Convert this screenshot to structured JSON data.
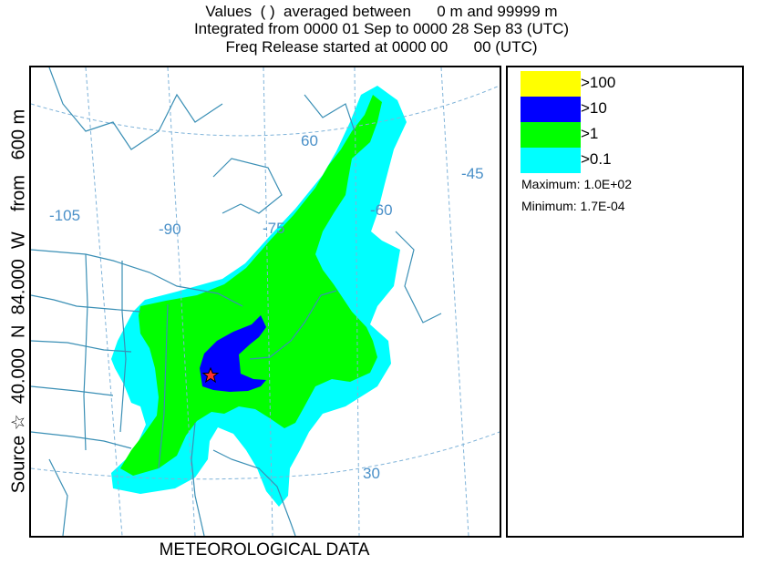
{
  "header": {
    "line1": "Values  ( )  averaged between      0 m and 99999 m",
    "line2": "Integrated from 0000 01 Sep to 0000 28 Sep 83 (UTC)",
    "line3": "Freq Release started at 0000 00      00 (UTC)"
  },
  "side_label": "Source ☆  40.000  N  84.000  W    from   600 m",
  "footer": "METEOROLOGICAL DATA",
  "map": {
    "grid_labels": [
      "-105",
      "-90",
      "-75",
      "-60",
      "-45",
      "60",
      "30"
    ],
    "grid_color": "#7fb3d9",
    "boundary_color": "#3a8fb5",
    "source_marker": "star-icon"
  },
  "legend": {
    "items": [
      {
        "label": ">100",
        "color": "#ffff00"
      },
      {
        "label": ">10",
        "color": "#0000ff"
      },
      {
        "label": ">1",
        "color": "#00ff00"
      },
      {
        "label": ">0.1",
        "color": "#00ffff"
      }
    ],
    "maximum": "Maximum: 1.0E+02",
    "minimum": "Minimum: 1.7E-04"
  }
}
